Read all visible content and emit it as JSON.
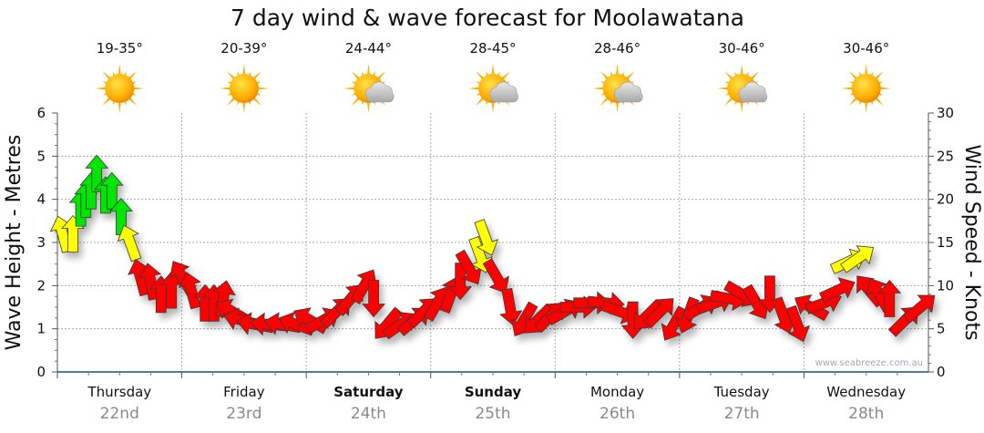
{
  "chart_data": {
    "type": "scatter",
    "title": "7 day wind & wave forecast for Moolawatana",
    "ylabel": "Wave Height - Metres",
    "y2label": "Wind Speed - Knots",
    "ylim": [
      0,
      6
    ],
    "y2lim": [
      0,
      30
    ],
    "yticks": [
      "0",
      "1",
      "2",
      "3",
      "4",
      "5",
      "6"
    ],
    "y2ticks": [
      "0",
      "5",
      "10",
      "15",
      "20",
      "25",
      "30"
    ],
    "xlim_hours": [
      0,
      168
    ],
    "grid": true,
    "watermark": "www.seabreeze.com.au",
    "colors": {
      "low": "#ff0000",
      "mid": "#ffff00",
      "high": "#00e600"
    },
    "color_thresholds_knots": [
      12.5,
      17
    ],
    "days": [
      {
        "name": "Thursday",
        "date": "22nd",
        "temp": "19-35°",
        "icon": "sun-icon",
        "bold": false
      },
      {
        "name": "Friday",
        "date": "23rd",
        "temp": "20-39°",
        "icon": "sun-icon",
        "bold": false
      },
      {
        "name": "Saturday",
        "date": "24th",
        "temp": "24-44°",
        "icon": "sun-cloud-icon",
        "bold": true
      },
      {
        "name": "Sunday",
        "date": "25th",
        "temp": "28-45°",
        "icon": "sun-cloud-icon",
        "bold": true
      },
      {
        "name": "Monday",
        "date": "26th",
        "temp": "28-46°",
        "icon": "sun-cloud-icon",
        "bold": false
      },
      {
        "name": "Tuesday",
        "date": "27th",
        "temp": "30-46°",
        "icon": "sun-cloud-icon",
        "bold": false
      },
      {
        "name": "Wednesday",
        "date": "28th",
        "temp": "30-46°",
        "icon": "sun-icon",
        "bold": false
      }
    ],
    "wind": [
      {
        "hour": 1,
        "knots": 16,
        "arrow_deg": -15
      },
      {
        "hour": 3,
        "knots": 16,
        "arrow_deg": 0
      },
      {
        "hour": 4.5,
        "knots": 19,
        "arrow_deg": 0
      },
      {
        "hour": 5.5,
        "knots": 20,
        "arrow_deg": 0
      },
      {
        "hour": 6.5,
        "knots": 21,
        "arrow_deg": 0
      },
      {
        "hour": 7.6,
        "knots": 23,
        "arrow_deg": 0
      },
      {
        "hour": 9.3,
        "knots": 20.5,
        "arrow_deg": 0
      },
      {
        "hour": 10.5,
        "knots": 21,
        "arrow_deg": 0
      },
      {
        "hour": 12.3,
        "knots": 18,
        "arrow_deg": 0
      },
      {
        "hour": 14,
        "knots": 15,
        "arrow_deg": -20
      },
      {
        "hour": 16,
        "knots": 11,
        "arrow_deg": -15
      },
      {
        "hour": 18,
        "knots": 10.5,
        "arrow_deg": -10
      },
      {
        "hour": 20,
        "knots": 9,
        "arrow_deg": 0
      },
      {
        "hour": 22,
        "knots": 9.5,
        "arrow_deg": 0
      },
      {
        "hour": 24.1,
        "knots": 11,
        "arrow_deg": -30
      },
      {
        "hour": 25.8,
        "knots": 9.5,
        "arrow_deg": -15
      },
      {
        "hour": 28.5,
        "knots": 8,
        "arrow_deg": 0
      },
      {
        "hour": 30.2,
        "knots": 8,
        "arrow_deg": 0
      },
      {
        "hour": 32,
        "knots": 8.5,
        "arrow_deg": 10
      },
      {
        "hour": 33.7,
        "knots": 7,
        "arrow_deg": -60
      },
      {
        "hour": 35.5,
        "knots": 6,
        "arrow_deg": -75
      },
      {
        "hour": 38.1,
        "knots": 5.5,
        "arrow_deg": -80
      },
      {
        "hour": 40.8,
        "knots": 5.5,
        "arrow_deg": -85
      },
      {
        "hour": 43.4,
        "knots": 5.5,
        "arrow_deg": -80
      },
      {
        "hour": 46,
        "knots": 5.5,
        "arrow_deg": -70
      },
      {
        "hour": 48.7,
        "knots": 6,
        "arrow_deg": -60
      },
      {
        "hour": 51.3,
        "knots": 6,
        "arrow_deg": 60
      },
      {
        "hour": 53.9,
        "knots": 7,
        "arrow_deg": 45
      },
      {
        "hour": 56.6,
        "knots": 8.5,
        "arrow_deg": 40
      },
      {
        "hour": 59.2,
        "knots": 10,
        "arrow_deg": 30
      },
      {
        "hour": 61,
        "knots": 8.5,
        "arrow_deg": 180
      },
      {
        "hour": 63.6,
        "knots": 5.5,
        "arrow_deg": -140
      },
      {
        "hour": 66.2,
        "knots": 5.5,
        "arrow_deg": 55
      },
      {
        "hour": 68.9,
        "knots": 6,
        "arrow_deg": 50
      },
      {
        "hour": 70.6,
        "knots": 7,
        "arrow_deg": 45
      },
      {
        "hour": 73.3,
        "knots": 8,
        "arrow_deg": 30
      },
      {
        "hour": 75.9,
        "knots": 9,
        "arrow_deg": 20
      },
      {
        "hour": 77.7,
        "knots": 10.5,
        "arrow_deg": 180
      },
      {
        "hour": 79.4,
        "knots": 12,
        "arrow_deg": 150
      },
      {
        "hour": 81.5,
        "knots": 13.5,
        "arrow_deg": 160
      },
      {
        "hour": 82.6,
        "knots": 15.5,
        "arrow_deg": 160
      },
      {
        "hour": 84.7,
        "knots": 11,
        "arrow_deg": 150
      },
      {
        "hour": 87.3,
        "knots": 7.5,
        "arrow_deg": 170
      },
      {
        "hour": 90,
        "knots": 6,
        "arrow_deg": -150
      },
      {
        "hour": 92.6,
        "knots": 6,
        "arrow_deg": -135
      },
      {
        "hour": 95.2,
        "knots": 6.5,
        "arrow_deg": 45
      },
      {
        "hour": 97.9,
        "knots": 7,
        "arrow_deg": 60
      },
      {
        "hour": 100.5,
        "knots": 7.5,
        "arrow_deg": 90
      },
      {
        "hour": 103.1,
        "knots": 8,
        "arrow_deg": 90
      },
      {
        "hour": 105.8,
        "knots": 8,
        "arrow_deg": 95
      },
      {
        "hour": 108.4,
        "knots": 7,
        "arrow_deg": 110
      },
      {
        "hour": 111,
        "knots": 6,
        "arrow_deg": 180
      },
      {
        "hour": 113.7,
        "knots": 6.5,
        "arrow_deg": -135
      },
      {
        "hour": 116.3,
        "knots": 7,
        "arrow_deg": 45
      },
      {
        "hour": 118.9,
        "knots": 5.5,
        "arrow_deg": -150
      },
      {
        "hour": 121.6,
        "knots": 6.5,
        "arrow_deg": -160
      },
      {
        "hour": 124.2,
        "knots": 7.5,
        "arrow_deg": 60
      },
      {
        "hour": 126.9,
        "knots": 8,
        "arrow_deg": 70
      },
      {
        "hour": 129.5,
        "knots": 8.5,
        "arrow_deg": 100
      },
      {
        "hour": 132.1,
        "knots": 9,
        "arrow_deg": 120
      },
      {
        "hour": 134.8,
        "knots": 8,
        "arrow_deg": 150
      },
      {
        "hour": 137.4,
        "knots": 9,
        "arrow_deg": 180
      },
      {
        "hour": 140,
        "knots": 6.5,
        "arrow_deg": 160
      },
      {
        "hour": 142.7,
        "knots": 5.5,
        "arrow_deg": 160
      },
      {
        "hour": 145.3,
        "knots": 7.5,
        "arrow_deg": -60
      },
      {
        "hour": 147.9,
        "knots": 8,
        "arrow_deg": 70
      },
      {
        "hour": 150.6,
        "knots": 9.5,
        "arrow_deg": 65
      },
      {
        "hour": 152.7,
        "knots": 12.8,
        "arrow_deg": 65
      },
      {
        "hour": 154.5,
        "knots": 13.2,
        "arrow_deg": 55
      },
      {
        "hour": 156.5,
        "knots": 9.5,
        "arrow_deg": -40
      },
      {
        "hour": 158.5,
        "knots": 9,
        "arrow_deg": -30
      },
      {
        "hour": 160.5,
        "knots": 8.5,
        "arrow_deg": 0
      },
      {
        "hour": 163.5,
        "knots": 6,
        "arrow_deg": 45
      },
      {
        "hour": 166.5,
        "knots": 7.5,
        "arrow_deg": 50
      }
    ]
  }
}
